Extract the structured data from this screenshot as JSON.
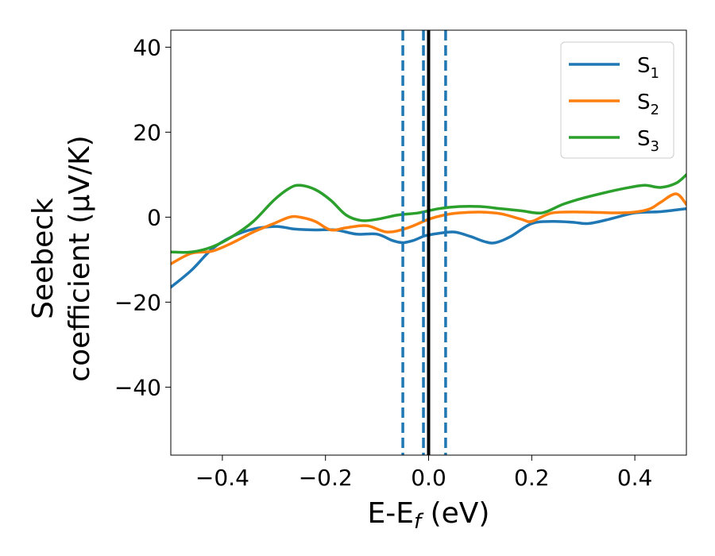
{
  "chart_data": {
    "type": "line",
    "xlabel": "E-E",
    "xlabel_sub": "f",
    "xlabel_unit": " (eV)",
    "ylabel_line1": "Seebeck",
    "ylabel_line2": "coefficient  (μV/K)",
    "xlim": [
      -0.5,
      0.5
    ],
    "ylim": [
      -56,
      44
    ],
    "xticks": [
      -0.4,
      -0.2,
      0.0,
      0.2,
      0.4
    ],
    "xtick_labels": [
      "−0.4",
      "−0.2",
      "0.0",
      "0.2",
      "0.4"
    ],
    "yticks": [
      -40,
      -20,
      0,
      20,
      40
    ],
    "ytick_labels": [
      "−40",
      "−20",
      "0",
      "20",
      "40"
    ],
    "grid": false,
    "legend_position": "top-right",
    "vlines": [
      {
        "x": -0.05,
        "style": "dashed",
        "color": "#1f77b4"
      },
      {
        "x": -0.01,
        "style": "dashed",
        "color": "#1f77b4"
      },
      {
        "x": 0.033,
        "style": "dashed",
        "color": "#1f77b4"
      },
      {
        "x": 0.0,
        "style": "solid",
        "color": "#000000"
      }
    ],
    "series": [
      {
        "name": "S",
        "sub": "1",
        "color": "#1f77b4",
        "x": [
          -0.5,
          -0.46,
          -0.42,
          -0.38,
          -0.34,
          -0.3,
          -0.28,
          -0.26,
          -0.22,
          -0.18,
          -0.14,
          -0.1,
          -0.07,
          -0.05,
          -0.03,
          -0.01,
          0.0,
          0.02,
          0.05,
          0.08,
          0.11,
          0.13,
          0.16,
          0.2,
          0.24,
          0.28,
          0.31,
          0.35,
          0.4,
          0.45,
          0.5
        ],
        "y": [
          -16.5,
          -12.5,
          -7.5,
          -4.5,
          -2.8,
          -2.2,
          -2.4,
          -2.8,
          -3.0,
          -3.0,
          -4.0,
          -4.0,
          -5.5,
          -6.0,
          -5.5,
          -4.5,
          -4.2,
          -3.8,
          -3.5,
          -4.5,
          -5.8,
          -6.0,
          -4.5,
          -1.5,
          -1.0,
          -1.2,
          -1.5,
          -0.5,
          1.0,
          1.3,
          2.0
        ]
      },
      {
        "name": "S",
        "sub": "2",
        "color": "#ff7f0e",
        "x": [
          -0.5,
          -0.46,
          -0.42,
          -0.38,
          -0.34,
          -0.3,
          -0.27,
          -0.25,
          -0.22,
          -0.19,
          -0.16,
          -0.12,
          -0.08,
          -0.04,
          0.0,
          0.03,
          0.06,
          0.1,
          0.14,
          0.18,
          0.2,
          0.24,
          0.3,
          0.36,
          0.4,
          0.43,
          0.45,
          0.48,
          0.5
        ],
        "y": [
          -11.0,
          -8.5,
          -8.0,
          -6.0,
          -3.5,
          -1.5,
          0.0,
          0.0,
          -1.0,
          -3.0,
          -2.5,
          -2.0,
          -3.5,
          -2.5,
          -0.5,
          0.5,
          1.0,
          1.2,
          0.8,
          -0.5,
          -1.0,
          1.0,
          1.2,
          1.0,
          1.2,
          2.0,
          3.5,
          5.5,
          3.0
        ]
      },
      {
        "name": "S",
        "sub": "3",
        "color": "#2ca02c",
        "x": [
          -0.5,
          -0.46,
          -0.42,
          -0.38,
          -0.34,
          -0.3,
          -0.27,
          -0.25,
          -0.22,
          -0.19,
          -0.16,
          -0.13,
          -0.1,
          -0.06,
          -0.02,
          0.02,
          0.06,
          0.1,
          0.14,
          0.18,
          0.22,
          0.26,
          0.3,
          0.35,
          0.39,
          0.42,
          0.45,
          0.48,
          0.5
        ],
        "y": [
          -8.2,
          -8.2,
          -7.0,
          -4.5,
          -1.0,
          4.0,
          6.8,
          7.5,
          6.5,
          4.0,
          0.5,
          -0.8,
          -0.5,
          0.5,
          1.0,
          2.0,
          2.5,
          2.5,
          2.0,
          1.5,
          1.0,
          3.0,
          4.5,
          6.0,
          7.0,
          7.5,
          7.0,
          8.0,
          10.0
        ]
      }
    ]
  }
}
